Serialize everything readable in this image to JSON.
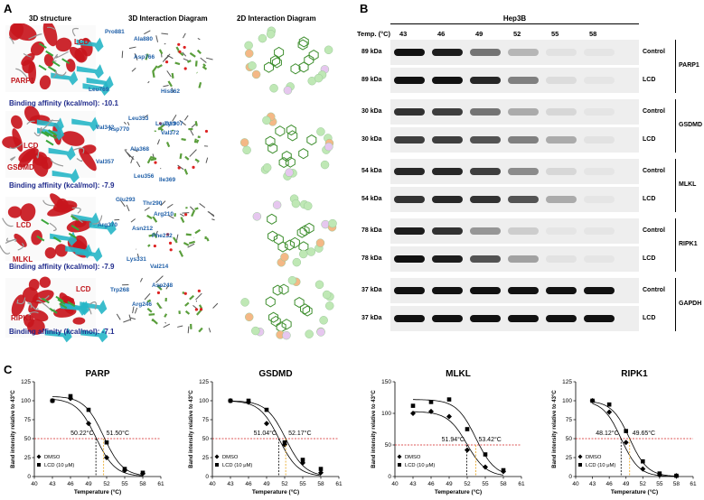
{
  "panels": {
    "a": "A",
    "b": "B",
    "c": "C"
  },
  "panel_a": {
    "headers": [
      "3D structure",
      "3D Interaction Diagram",
      "2D Interaction Diagram"
    ],
    "rows": [
      {
        "target": "PARP1",
        "ligand": "LCD",
        "affinity": "Binding affinity (kcal/mol): -10.1",
        "residues": [
          "Pro881",
          "Ala880",
          "Asp766",
          "His862",
          "Leu769",
          "Asp770",
          "Tyr907"
        ]
      },
      {
        "target": "GSDMD",
        "ligand": "LCD",
        "affinity": "Binding affinity (kcal/mol): -7.9",
        "residues": [
          "Leu353",
          "Leu333",
          "Val342",
          "Val372",
          "Ala368",
          "Val357",
          "Leu356",
          "Ile369"
        ]
      },
      {
        "target": "MLKL",
        "ligand": "LCD",
        "affinity": "Binding affinity (kcal/mol): -7.9",
        "residues": [
          "Glu293",
          "Thr290",
          "Arg210",
          "Arg370",
          "Asn212",
          "Phe232",
          "Lys331",
          "Val214"
        ]
      },
      {
        "target": "RIPK1",
        "ligand": "LCD",
        "affinity": "Binding affinity (kcal/mol): -7.1",
        "residues": [
          "Trp268",
          "Asp248",
          "Arg246"
        ]
      }
    ]
  },
  "panel_b": {
    "cell_line": "Hep3B",
    "temp_label": "Temp. (°C)",
    "temps": [
      "43",
      "46",
      "49",
      "52",
      "55",
      "58"
    ],
    "groups": [
      {
        "protein": "PARP1",
        "rows": [
          {
            "kda": "89 kDa",
            "cond": "Control",
            "levels": [
              1.0,
              0.95,
              0.55,
              0.25,
              0.05,
              0.02
            ]
          },
          {
            "kda": "89 kDa",
            "cond": "LCD",
            "levels": [
              1.0,
              1.0,
              0.9,
              0.5,
              0.08,
              0.02
            ]
          }
        ]
      },
      {
        "protein": "GSDMD",
        "rows": [
          {
            "kda": "30 kDa",
            "cond": "Control",
            "levels": [
              0.85,
              0.8,
              0.55,
              0.3,
              0.1,
              0.03
            ]
          },
          {
            "kda": "30 kDa",
            "cond": "LCD",
            "levels": [
              0.8,
              0.8,
              0.7,
              0.5,
              0.3,
              0.05
            ]
          }
        ]
      },
      {
        "protein": "MLKL",
        "rows": [
          {
            "kda": "54 kDa",
            "cond": "Control",
            "levels": [
              0.9,
              0.9,
              0.8,
              0.45,
              0.1,
              0.02
            ]
          },
          {
            "kda": "54 kDa",
            "cond": "LCD",
            "levels": [
              0.85,
              0.9,
              0.85,
              0.7,
              0.3,
              0.03
            ]
          }
        ]
      },
      {
        "protein": "RIPK1",
        "rows": [
          {
            "kda": "78 kDa",
            "cond": "Control",
            "levels": [
              0.95,
              0.85,
              0.4,
              0.15,
              0.03,
              0.01
            ]
          },
          {
            "kda": "78 kDa",
            "cond": "LCD",
            "levels": [
              1.0,
              0.95,
              0.7,
              0.35,
              0.05,
              0.01
            ]
          }
        ]
      },
      {
        "protein": "GAPDH",
        "rows": [
          {
            "kda": "37 kDa",
            "cond": "Control",
            "levels": [
              1,
              1,
              1,
              1,
              1,
              1
            ]
          },
          {
            "kda": "37 kDa",
            "cond": "LCD",
            "levels": [
              1,
              1,
              1,
              1,
              1,
              1
            ]
          }
        ]
      }
    ]
  },
  "chart_data": [
    {
      "type": "scatter",
      "title": "PARP",
      "xlabel": "Temperature (°C)",
      "ylabel": "Band intensity relative to 43°C",
      "xlim": [
        40,
        61
      ],
      "ylim": [
        0,
        125
      ],
      "xticks": [
        40,
        43,
        46,
        49,
        52,
        55,
        58,
        61
      ],
      "yticks": [
        0,
        25,
        50,
        75,
        100,
        125
      ],
      "series": [
        {
          "name": "DMSO",
          "x": [
            43,
            46,
            49,
            52,
            55,
            58
          ],
          "y": [
            100,
            103,
            70,
            25,
            8,
            4
          ],
          "tm": 50.22
        },
        {
          "name": "LCD (10 μM)",
          "x": [
            43,
            46,
            49,
            52,
            55,
            58
          ],
          "y": [
            100,
            106,
            88,
            45,
            10,
            5
          ],
          "tm": 51.5
        }
      ],
      "ref_y": 50,
      "annotations": [
        "50.22°C",
        "51.50°C"
      ]
    },
    {
      "type": "scatter",
      "title": "GSDMD",
      "xlabel": "Temperature (°C)",
      "ylabel": "Band intensity relative to 43°C",
      "xlim": [
        40,
        61
      ],
      "ylim": [
        0,
        125
      ],
      "xticks": [
        40,
        43,
        46,
        49,
        52,
        55,
        58,
        61
      ],
      "yticks": [
        0,
        25,
        50,
        75,
        100,
        125
      ],
      "series": [
        {
          "name": "DMSO",
          "x": [
            43,
            46,
            49,
            52,
            55,
            58
          ],
          "y": [
            100,
            98,
            70,
            42,
            18,
            5
          ],
          "tm": 51.04
        },
        {
          "name": "LCD (10 μM)",
          "x": [
            43,
            46,
            49,
            52,
            55,
            58
          ],
          "y": [
            100,
            100,
            88,
            45,
            22,
            10
          ],
          "tm": 52.17
        }
      ],
      "ref_y": 50,
      "annotations": [
        "51.04°C",
        "52.17°C"
      ]
    },
    {
      "type": "scatter",
      "title": "MLKL",
      "xlabel": "Temperature (°C)",
      "ylabel": "Band intensity relative to 43°C",
      "xlim": [
        40,
        61
      ],
      "ylim": [
        0,
        150
      ],
      "xticks": [
        40,
        43,
        46,
        49,
        52,
        55,
        58,
        61
      ],
      "yticks": [
        0,
        50,
        100,
        150
      ],
      "series": [
        {
          "name": "DMSO",
          "x": [
            43,
            46,
            49,
            52,
            55,
            58
          ],
          "y": [
            100,
            103,
            95,
            42,
            15,
            8
          ],
          "tm": 51.94
        },
        {
          "name": "LCD (10 μM)",
          "x": [
            43,
            46,
            49,
            52,
            55,
            58
          ],
          "y": [
            112,
            118,
            122,
            75,
            35,
            10
          ],
          "tm": 53.42
        }
      ],
      "ref_y": 50,
      "annotations": [
        "51.94°C",
        "53.42°C"
      ]
    },
    {
      "type": "scatter",
      "title": "RIPK1",
      "xlabel": "Temperature (°C)",
      "ylabel": "Band intensity relative to 43°C",
      "xlim": [
        40,
        61
      ],
      "ylim": [
        0,
        125
      ],
      "xticks": [
        40,
        43,
        46,
        49,
        52,
        55,
        58,
        61
      ],
      "yticks": [
        0,
        25,
        50,
        75,
        100,
        125
      ],
      "series": [
        {
          "name": "DMSO",
          "x": [
            43,
            46,
            49,
            52,
            55,
            58
          ],
          "y": [
            100,
            85,
            45,
            10,
            2,
            1
          ],
          "tm": 48.12
        },
        {
          "name": "LCD (10 μM)",
          "x": [
            43,
            46,
            49,
            52,
            55,
            58
          ],
          "y": [
            100,
            95,
            60,
            20,
            4,
            1
          ],
          "tm": 49.65
        }
      ],
      "ref_y": 50,
      "annotations": [
        "48.12°C",
        "49.65°C"
      ]
    }
  ]
}
